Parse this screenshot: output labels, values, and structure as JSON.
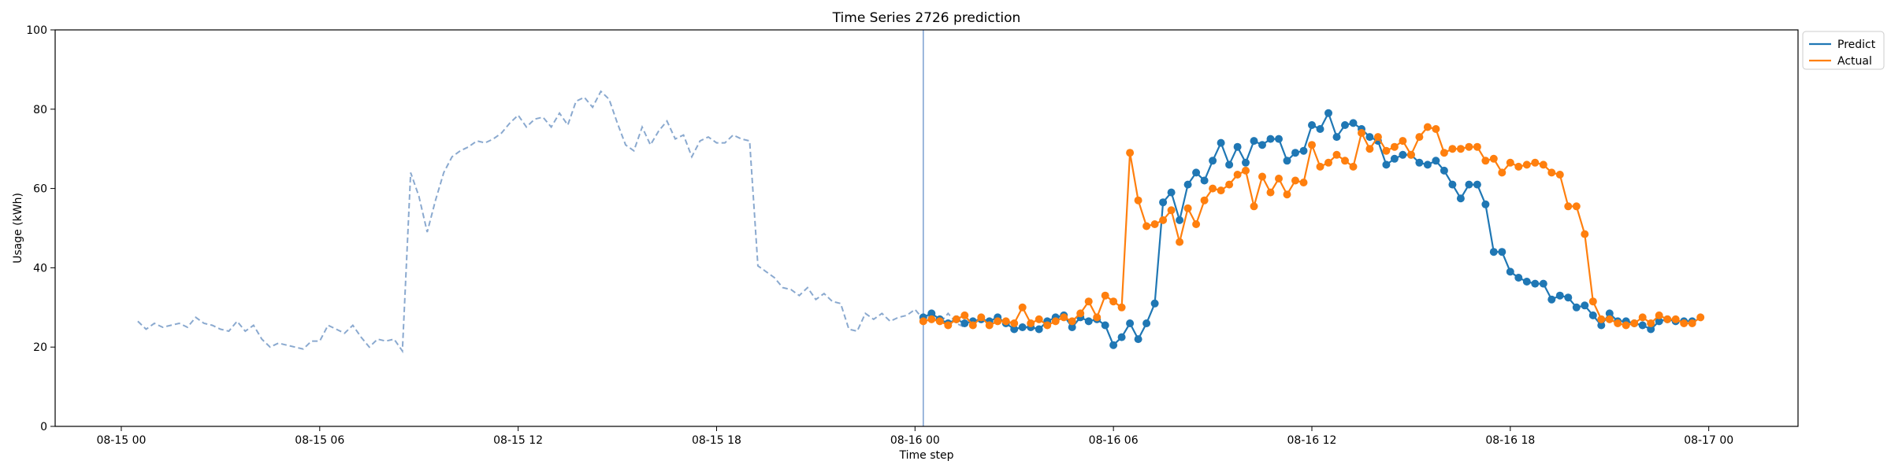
{
  "chart_data": {
    "type": "line",
    "title": "Time Series 2726 prediction",
    "xlabel": "Time step",
    "ylabel": "Usage (kWh)",
    "ylim": [
      0,
      100
    ],
    "y_ticks": [
      "0",
      "20",
      "40",
      "60",
      "80",
      "100"
    ],
    "x_ticks": [
      "08-15 00",
      "08-15 06",
      "08-15 12",
      "08-15 18",
      "08-16 00",
      "08-16 06",
      "08-16 12",
      "08-16 18",
      "08-17 00"
    ],
    "x_range_hours": [
      -2,
      50.7
    ],
    "forecast_start_hour": 24.25,
    "legend_placement": "top-right",
    "grid": false,
    "colors": {
      "history": "#8aa9cf",
      "predict": "#1f77b4",
      "actual": "#ff7f0e",
      "divider": "#7b9fd1"
    },
    "history": {
      "step_hours": 0.25,
      "start_hour": 0.5,
      "values": [
        26.5,
        24.5,
        26.0,
        25.0,
        25.5,
        26.0,
        25.0,
        27.5,
        26.0,
        25.5,
        24.5,
        24.0,
        26.5,
        24.0,
        25.5,
        22.0,
        20.0,
        21.0,
        20.5,
        20.0,
        19.5,
        21.5,
        21.5,
        25.5,
        24.5,
        23.5,
        25.5,
        22.5,
        20.0,
        22.0,
        21.5,
        22.0,
        19.0,
        64.0,
        58.0,
        49.0,
        57.0,
        64.0,
        68.0,
        69.5,
        70.5,
        72.0,
        71.5,
        72.5,
        74.0,
        76.5,
        78.5,
        75.5,
        77.5,
        78.0,
        75.5,
        79.0,
        76.0,
        82.0,
        83.0,
        80.5,
        84.5,
        82.5,
        76.5,
        71.0,
        69.5,
        75.5,
        71.0,
        74.5,
        77.0,
        72.5,
        73.5,
        68.0,
        72.0,
        73.0,
        71.5,
        71.5,
        73.5,
        72.5,
        72.0,
        40.5,
        39.0,
        37.5,
        35.0,
        34.5,
        33.0,
        35.0,
        32.0,
        33.5,
        31.5,
        31.0,
        24.5,
        24.0,
        28.5,
        27.0,
        28.5,
        26.5,
        27.5,
        28.0,
        29.5,
        27.0,
        28.0,
        26.0,
        28.5,
        26.0,
        25.0
      ]
    },
    "series": [
      {
        "name": "Predict",
        "start_hour": 24.25,
        "step_hours": 0.25,
        "values": [
          27.5,
          28.5,
          27.0,
          26.0,
          27.0,
          26.0,
          26.5,
          27.0,
          26.5,
          27.5,
          26.0,
          24.5,
          25.0,
          25.0,
          24.5,
          26.5,
          27.5,
          28.0,
          25.0,
          27.5,
          26.5,
          27.0,
          25.5,
          20.5,
          22.5,
          26.0,
          22.0,
          26.0,
          31.0,
          56.5,
          59.0,
          52.0,
          61.0,
          64.0,
          62.0,
          67.0,
          71.5,
          66.0,
          70.5,
          66.5,
          72.0,
          71.0,
          72.5,
          72.5,
          67.0,
          69.0,
          69.5,
          76.0,
          75.0,
          79.0,
          73.0,
          76.0,
          76.5,
          75.0,
          73.0,
          72.0,
          66.0,
          67.5,
          68.5,
          68.5,
          66.5,
          66.0,
          67.0,
          64.5,
          61.0,
          57.5,
          61.0,
          61.0,
          56.0,
          44.0,
          44.0,
          39.0,
          37.5,
          36.5,
          36.0,
          36.0,
          32.0,
          33.0,
          32.5,
          30.0,
          30.5,
          28.0,
          25.5,
          28.5,
          26.5,
          26.5,
          26.0,
          25.5,
          24.5,
          26.5,
          27.0,
          26.5,
          26.5,
          26.5
        ]
      },
      {
        "name": "Actual",
        "start_hour": 24.25,
        "step_hours": 0.25,
        "values": [
          26.5,
          27.0,
          26.5,
          25.5,
          27.0,
          28.0,
          25.5,
          27.5,
          25.5,
          26.5,
          26.5,
          26.0,
          30.0,
          26.0,
          27.0,
          25.5,
          26.5,
          27.5,
          26.5,
          28.5,
          31.5,
          27.5,
          33.0,
          31.5,
          30.0,
          69.0,
          57.0,
          50.5,
          51.0,
          52.0,
          54.5,
          46.5,
          55.0,
          51.0,
          57.0,
          60.0,
          59.5,
          61.0,
          63.5,
          64.5,
          55.5,
          63.0,
          59.0,
          62.5,
          58.5,
          62.0,
          61.5,
          71.0,
          65.5,
          66.5,
          68.5,
          67.0,
          65.5,
          74.0,
          70.0,
          73.0,
          69.5,
          70.5,
          72.0,
          68.5,
          73.0,
          75.5,
          75.0,
          69.0,
          70.0,
          70.0,
          70.5,
          70.5,
          67.0,
          67.5,
          64.0,
          66.5,
          65.5,
          66.0,
          66.5,
          66.0,
          64.0,
          63.5,
          55.5,
          55.5,
          48.5,
          31.5,
          27.0,
          27.0,
          26.0,
          25.5,
          26.0,
          27.5,
          26.0,
          28.0,
          27.0,
          27.0,
          26.0,
          26.0,
          27.5
        ]
      }
    ]
  }
}
